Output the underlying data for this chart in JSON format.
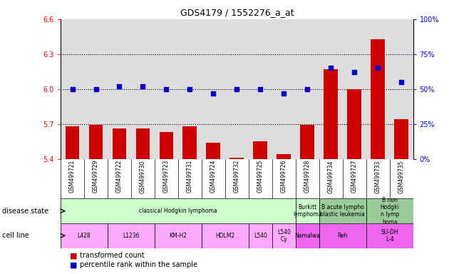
{
  "title": "GDS4179 / 1552276_a_at",
  "samples": [
    "GSM499721",
    "GSM499729",
    "GSM499722",
    "GSM499730",
    "GSM499723",
    "GSM499731",
    "GSM499724",
    "GSM499732",
    "GSM499725",
    "GSM499726",
    "GSM499728",
    "GSM499734",
    "GSM499727",
    "GSM499733",
    "GSM499735"
  ],
  "bar_values": [
    5.68,
    5.69,
    5.66,
    5.66,
    5.63,
    5.68,
    5.54,
    5.41,
    5.55,
    5.44,
    5.69,
    6.17,
    6.0,
    6.43,
    5.74
  ],
  "dot_values": [
    50,
    50,
    52,
    52,
    50,
    50,
    47,
    50,
    50,
    47,
    50,
    65,
    62,
    65,
    55
  ],
  "ylim_left": [
    5.4,
    6.6
  ],
  "ylim_right": [
    0,
    100
  ],
  "yticks_left": [
    5.4,
    5.7,
    6.0,
    6.3,
    6.6
  ],
  "yticks_right": [
    0,
    25,
    50,
    75,
    100
  ],
  "bar_color": "#cc0000",
  "dot_color": "#0000cc",
  "disease_state_groups": [
    {
      "label": "classical Hodgkin lymphoma",
      "start": 0,
      "end": 10,
      "color": "#ccffcc"
    },
    {
      "label": "Burkitt\nlymphoma",
      "start": 10,
      "end": 11,
      "color": "#ccffcc"
    },
    {
      "label": "B acute lympho\nblastic leukemia",
      "start": 11,
      "end": 13,
      "color": "#99cc99"
    },
    {
      "label": "B non\nHodgki\nn lymp\nhoma",
      "start": 13,
      "end": 15,
      "color": "#99cc99"
    }
  ],
  "cell_line_groups": [
    {
      "label": "L428",
      "start": 0,
      "end": 2,
      "color": "#ffaaff"
    },
    {
      "label": "L1236",
      "start": 2,
      "end": 4,
      "color": "#ffaaff"
    },
    {
      "label": "KM-H2",
      "start": 4,
      "end": 6,
      "color": "#ffaaff"
    },
    {
      "label": "HDLM2",
      "start": 6,
      "end": 8,
      "color": "#ffaaff"
    },
    {
      "label": "L540",
      "start": 8,
      "end": 9,
      "color": "#ffaaff"
    },
    {
      "label": "L540\nCy",
      "start": 9,
      "end": 10,
      "color": "#ffaaff"
    },
    {
      "label": "Namalwa",
      "start": 10,
      "end": 11,
      "color": "#ee66ee"
    },
    {
      "label": "Reh",
      "start": 11,
      "end": 13,
      "color": "#ee66ee"
    },
    {
      "label": "SU-DH\nL-4",
      "start": 13,
      "end": 15,
      "color": "#ee66ee"
    }
  ],
  "grid_dotted_at": [
    5.7,
    6.0,
    6.3
  ],
  "bg_color": "#ffffff",
  "plot_bg": "#dddddd",
  "tick_area_bg": "#bbbbbb"
}
